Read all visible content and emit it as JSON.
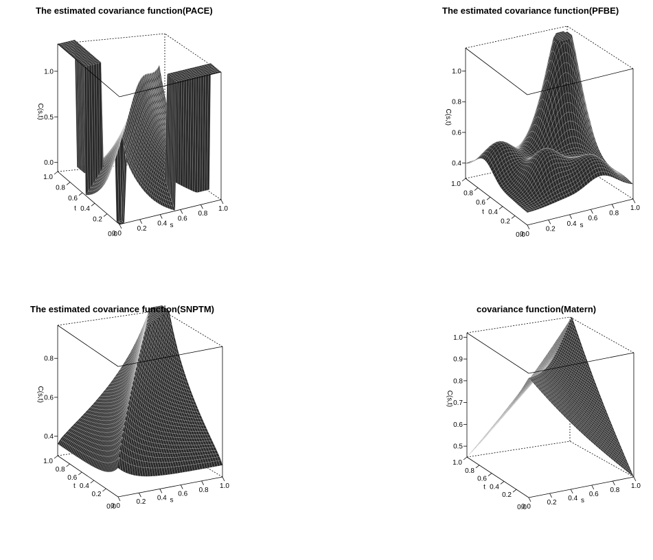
{
  "chart_data": [
    {
      "type": "surface",
      "title": "The estimated covariance function(PACE)",
      "xlabel": "s",
      "ylabel": "t",
      "zlabel": "C(s,t)",
      "x_ticks": [
        "0.0",
        "0.2",
        "0.4",
        "0.6",
        "0.8",
        "1.0"
      ],
      "y_ticks": [
        "0.0",
        "0.2",
        "0.4",
        "0.6",
        "0.8",
        "1.0"
      ],
      "z_ticks": [
        "0.0",
        "0.5",
        "1.0"
      ],
      "zlim": [
        -0.1,
        1.3
      ],
      "surface": "pace"
    },
    {
      "type": "surface",
      "title": "The estimated covariance function(PFBE)",
      "xlabel": "s",
      "ylabel": "t",
      "zlabel": "C(s,t)",
      "x_ticks": [
        "0.0",
        "0.2",
        "0.4",
        "0.6",
        "0.8",
        "1.0"
      ],
      "y_ticks": [
        "0.0",
        "0.2",
        "0.4",
        "0.6",
        "0.8",
        "1.0"
      ],
      "z_ticks": [
        "0.4",
        "0.6",
        "0.8",
        "1.0"
      ],
      "zlim": [
        0.3,
        1.15
      ],
      "surface": "pfbe"
    },
    {
      "type": "surface",
      "title": "The estimated covariance function(SNPTM)",
      "xlabel": "s",
      "ylabel": "t",
      "zlabel": "C(s,t)",
      "x_ticks": [
        "0.0",
        "0.2",
        "0.4",
        "0.6",
        "0.8",
        "1.0"
      ],
      "y_ticks": [
        "0.0",
        "0.2",
        "0.4",
        "0.6",
        "0.8",
        "1.0"
      ],
      "z_ticks": [
        "0.4",
        "0.6",
        "0.8"
      ],
      "zlim": [
        0.3,
        0.97
      ],
      "surface": "snptm"
    },
    {
      "type": "surface",
      "title": "covariance function(Matern)",
      "xlabel": "s",
      "ylabel": "t",
      "zlabel": "C(s,t)",
      "x_ticks": [
        "0.0",
        "0.2",
        "0.4",
        "0.6",
        "0.8",
        "1.0"
      ],
      "y_ticks": [
        "0.0",
        "0.2",
        "0.4",
        "0.6",
        "0.8",
        "1.0"
      ],
      "z_ticks": [
        "0.5",
        "0.6",
        "0.7",
        "0.8",
        "0.9",
        "1.0"
      ],
      "zlim": [
        0.45,
        1.02
      ],
      "surface": "matern"
    }
  ]
}
